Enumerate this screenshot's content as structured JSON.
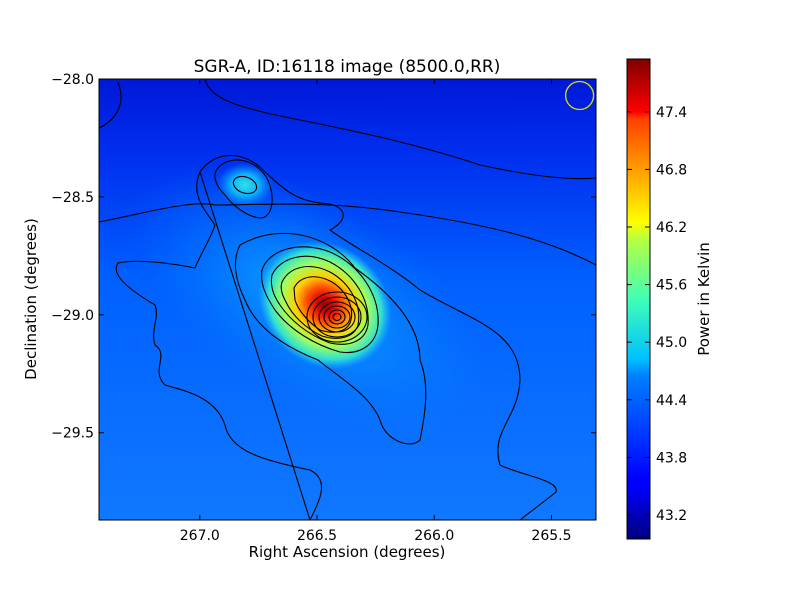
{
  "chart_data": {
    "type": "heatmap",
    "title": "SGR-A, ID:16118 image (8500.0,RR)",
    "xlabel": "Right Ascension (degrees)",
    "ylabel": "Declination (degrees)",
    "xlim": [
      267.43,
      265.31
    ],
    "ylim": [
      -29.87,
      -28.0
    ],
    "xticks": [
      267.0,
      266.5,
      266.0,
      265.5
    ],
    "xtick_labels": [
      "267.0",
      "266.5",
      "266.0",
      "265.5"
    ],
    "yticks": [
      -28.0,
      -28.5,
      -29.0,
      -29.5
    ],
    "ytick_labels": [
      "−28.0",
      "−28.5",
      "−29.0",
      "−29.5"
    ],
    "colorbar": {
      "label": "Power in Kelvin",
      "range": [
        42.95,
        47.95
      ],
      "ticks": [
        43.2,
        43.8,
        44.4,
        45.0,
        45.6,
        46.2,
        46.8,
        47.4
      ],
      "tick_labels": [
        "43.2",
        "43.8",
        "44.4",
        "45.0",
        "45.6",
        "46.2",
        "46.8",
        "47.4"
      ],
      "colormap": "jet"
    },
    "peaks": [
      {
        "ra": 266.45,
        "dec": -29.01,
        "value": 47.9
      },
      {
        "ra": 266.82,
        "dec": -28.45,
        "value": 44.8
      }
    ],
    "beam_marker": {
      "ra": 265.38,
      "dec": -28.07,
      "color": "#e0e000"
    },
    "grid": false
  }
}
